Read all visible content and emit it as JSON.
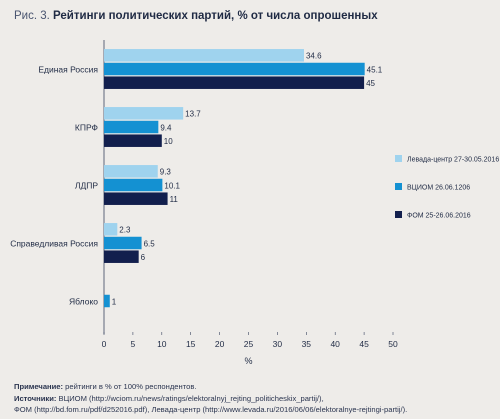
{
  "title": {
    "prefix": "Рис. 3.",
    "text": "Рейтинги политических партий, % от числа опрошенных"
  },
  "chart_data": {
    "type": "bar",
    "orientation": "horizontal",
    "categories": [
      "Единая Россия",
      "КПРФ",
      "ЛДПР",
      "Справедливая Россия",
      "Яблоко"
    ],
    "series": [
      {
        "name": "Левада-центр 27-30.05.2016",
        "color": "#9fd3ee",
        "values": [
          34.6,
          13.7,
          9.3,
          2.3,
          null
        ]
      },
      {
        "name": "ВЦИОМ 26.06.1206",
        "color": "#1491d2",
        "values": [
          45.1,
          9.4,
          10.1,
          6.5,
          1
        ]
      },
      {
        "name": "ФОМ 25-26.06.2016",
        "color": "#121f4d",
        "values": [
          45,
          10,
          11,
          6,
          null
        ]
      }
    ],
    "xlabel": "%",
    "xlim": [
      0,
      50
    ],
    "xticks": [
      0,
      5,
      10,
      15,
      20,
      25,
      30,
      35,
      40,
      45,
      50
    ],
    "grid": false,
    "legend_position": "right"
  },
  "notes": {
    "note_label": "Примечание:",
    "note_text": " рейтинги в % от 100% респондентов.",
    "sources_label": "Источники:",
    "sources_text": " ВЦИОМ (http://wciom.ru/news/ratings/elektoralnyj_rejting_politicheskix_partij/),",
    "sources_line2": "ФОМ (http://bd.fom.ru/pdf/d252016.pdf), Левада-центр (http://www.levada.ru/2016/06/06/elektoralnye-rejtingi-partij/)."
  }
}
